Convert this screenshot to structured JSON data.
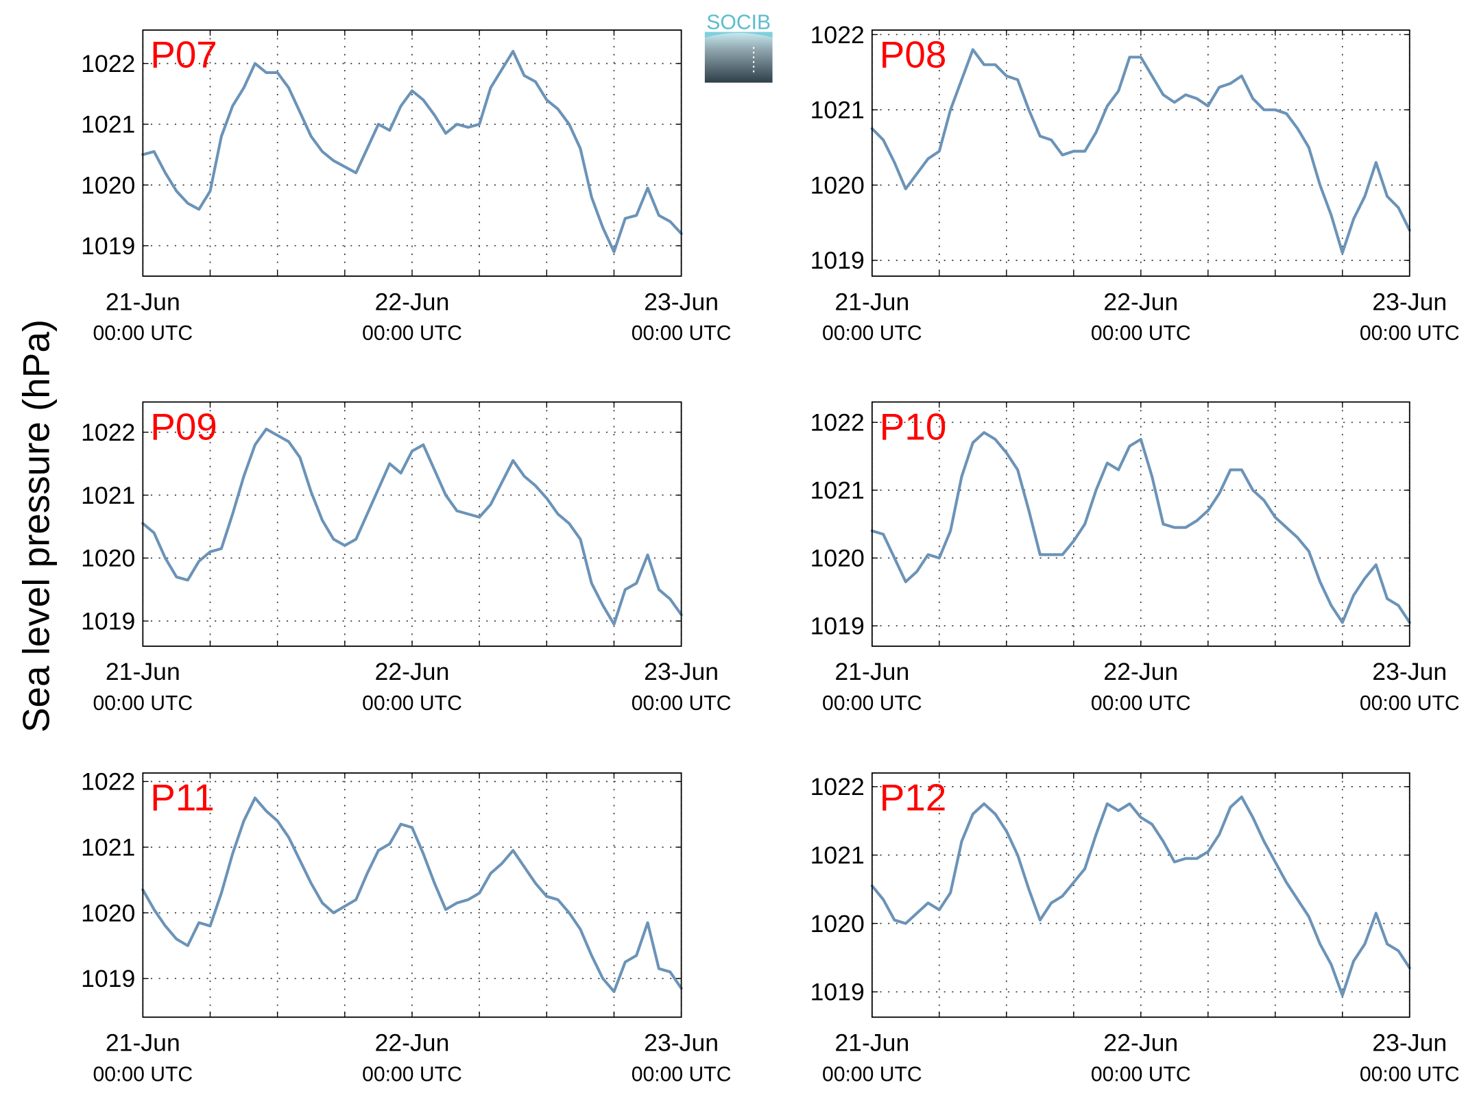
{
  "y_label": "Sea level pressure (hPa)",
  "logo": "SOCIB",
  "chart_data": [
    {
      "type": "line",
      "title": "P07",
      "x": [
        0,
        1,
        2,
        3,
        4,
        5,
        6,
        7,
        8,
        9,
        10,
        11,
        12,
        13,
        14,
        15,
        16,
        17,
        18,
        19,
        20,
        21,
        22,
        23,
        24,
        25,
        26,
        27,
        28,
        29,
        30,
        31,
        32,
        33,
        34,
        35,
        36,
        37,
        38,
        39,
        40,
        41,
        42,
        43,
        44,
        45,
        46,
        47,
        48
      ],
      "series": [
        {
          "color": "#6b93b8",
          "values": [
            1020.5,
            1020.55,
            1020.2,
            1019.9,
            1019.7,
            1019.6,
            1019.9,
            1020.8,
            1021.3,
            1021.6,
            1022.0,
            1021.85,
            1021.85,
            1021.6,
            1021.2,
            1020.8,
            1020.55,
            1020.4,
            1020.3,
            1020.2,
            1020.6,
            1021.0,
            1020.9,
            1021.3,
            1021.55,
            1021.4,
            1021.15,
            1020.85,
            1021.0,
            1020.95,
            1021.0,
            1021.6,
            1021.9,
            1022.2,
            1021.8,
            1021.7,
            1021.4,
            1021.25,
            1021.0,
            1020.6,
            1019.8,
            1019.3,
            1018.9,
            1019.45,
            1019.5,
            1019.95,
            1019.5,
            1019.4,
            1019.2
          ]
        }
      ],
      "xlim": [
        0,
        48
      ],
      "ylim": [
        1018.5,
        1022.55
      ],
      "yticks": [
        1019,
        1020,
        1021,
        1022
      ],
      "xticks": [
        {
          "value": 0,
          "label": "21-Jun",
          "sublabel": "00:00 UTC"
        },
        {
          "value": 6
        },
        {
          "value": 12
        },
        {
          "value": 18
        },
        {
          "value": 24,
          "label": "22-Jun",
          "sublabel": "00:00 UTC"
        },
        {
          "value": 30
        },
        {
          "value": 36
        },
        {
          "value": 42
        },
        {
          "value": 48,
          "label": "23-Jun",
          "sublabel": "00:00 UTC"
        }
      ],
      "grid": true
    },
    {
      "type": "line",
      "title": "P08",
      "x": [
        0,
        1,
        2,
        3,
        4,
        5,
        6,
        7,
        8,
        9,
        10,
        11,
        12,
        13,
        14,
        15,
        16,
        17,
        18,
        19,
        20,
        21,
        22,
        23,
        24,
        25,
        26,
        27,
        28,
        29,
        30,
        31,
        32,
        33,
        34,
        35,
        36,
        37,
        38,
        39,
        40,
        41,
        42,
        43,
        44,
        45,
        46,
        47,
        48
      ],
      "series": [
        {
          "color": "#6b93b8",
          "values": [
            1020.75,
            1020.6,
            1020.3,
            1019.95,
            1020.15,
            1020.35,
            1020.45,
            1021.0,
            1021.4,
            1021.8,
            1021.6,
            1021.6,
            1021.45,
            1021.4,
            1021.0,
            1020.65,
            1020.6,
            1020.4,
            1020.45,
            1020.45,
            1020.7,
            1021.05,
            1021.25,
            1021.7,
            1021.7,
            1021.45,
            1021.2,
            1021.1,
            1021.2,
            1021.15,
            1021.05,
            1021.3,
            1021.35,
            1021.45,
            1021.15,
            1021.0,
            1021.0,
            1020.95,
            1020.75,
            1020.5,
            1020.0,
            1019.6,
            1019.1,
            1019.55,
            1019.85,
            1020.3,
            1019.85,
            1019.7,
            1019.4
          ]
        }
      ],
      "xlim": [
        0,
        48
      ],
      "ylim": [
        1018.79,
        1022.06
      ],
      "yticks": [
        1019,
        1020,
        1021,
        1022
      ],
      "xticks": [
        {
          "value": 0,
          "label": "21-Jun",
          "sublabel": "00:00 UTC"
        },
        {
          "value": 6
        },
        {
          "value": 12
        },
        {
          "value": 18
        },
        {
          "value": 24,
          "label": "22-Jun",
          "sublabel": "00:00 UTC"
        },
        {
          "value": 30
        },
        {
          "value": 36
        },
        {
          "value": 42
        },
        {
          "value": 48,
          "label": "23-Jun",
          "sublabel": "00:00 UTC"
        }
      ],
      "grid": true
    },
    {
      "type": "line",
      "title": "P09",
      "x": [
        0,
        1,
        2,
        3,
        4,
        5,
        6,
        7,
        8,
        9,
        10,
        11,
        12,
        13,
        14,
        15,
        16,
        17,
        18,
        19,
        20,
        21,
        22,
        23,
        24,
        25,
        26,
        27,
        28,
        29,
        30,
        31,
        32,
        33,
        34,
        35,
        36,
        37,
        38,
        39,
        40,
        41,
        42,
        43,
        44,
        45,
        46,
        47,
        48
      ],
      "series": [
        {
          "color": "#6b93b8",
          "values": [
            1020.55,
            1020.4,
            1020.0,
            1019.7,
            1019.65,
            1019.95,
            1020.1,
            1020.15,
            1020.7,
            1021.3,
            1021.8,
            1022.05,
            1021.95,
            1021.85,
            1021.6,
            1021.05,
            1020.6,
            1020.3,
            1020.2,
            1020.3,
            1020.7,
            1021.1,
            1021.5,
            1021.35,
            1021.7,
            1021.8,
            1021.4,
            1021.0,
            1020.75,
            1020.7,
            1020.65,
            1020.85,
            1021.2,
            1021.55,
            1021.3,
            1021.15,
            1020.95,
            1020.7,
            1020.55,
            1020.3,
            1019.6,
            1019.25,
            1018.95,
            1019.5,
            1019.6,
            1020.05,
            1019.5,
            1019.35,
            1019.1
          ]
        }
      ],
      "xlim": [
        0,
        48
      ],
      "ylim": [
        1018.6,
        1022.48
      ],
      "yticks": [
        1019,
        1020,
        1021,
        1022
      ],
      "xticks": [
        {
          "value": 0,
          "label": "21-Jun",
          "sublabel": "00:00 UTC"
        },
        {
          "value": 6
        },
        {
          "value": 12
        },
        {
          "value": 18
        },
        {
          "value": 24,
          "label": "22-Jun",
          "sublabel": "00:00 UTC"
        },
        {
          "value": 30
        },
        {
          "value": 36
        },
        {
          "value": 42
        },
        {
          "value": 48,
          "label": "23-Jun",
          "sublabel": "00:00 UTC"
        }
      ],
      "grid": true
    },
    {
      "type": "line",
      "title": "P10",
      "x": [
        0,
        1,
        2,
        3,
        4,
        5,
        6,
        7,
        8,
        9,
        10,
        11,
        12,
        13,
        14,
        15,
        16,
        17,
        18,
        19,
        20,
        21,
        22,
        23,
        24,
        25,
        26,
        27,
        28,
        29,
        30,
        31,
        32,
        33,
        34,
        35,
        36,
        37,
        38,
        39,
        40,
        41,
        42,
        43,
        44,
        45,
        46,
        47,
        48
      ],
      "series": [
        {
          "color": "#6b93b8",
          "values": [
            1020.4,
            1020.35,
            1020.0,
            1019.65,
            1019.8,
            1020.05,
            1020.0,
            1020.4,
            1021.2,
            1021.7,
            1021.85,
            1021.75,
            1021.55,
            1021.3,
            1020.7,
            1020.05,
            1020.05,
            1020.05,
            1020.25,
            1020.5,
            1021.0,
            1021.4,
            1021.3,
            1021.65,
            1021.75,
            1021.2,
            1020.5,
            1020.45,
            1020.45,
            1020.55,
            1020.7,
            1020.95,
            1021.3,
            1021.3,
            1021.0,
            1020.85,
            1020.6,
            1020.45,
            1020.3,
            1020.1,
            1019.65,
            1019.3,
            1019.05,
            1019.45,
            1019.7,
            1019.9,
            1019.4,
            1019.3,
            1019.05
          ]
        }
      ],
      "xlim": [
        0,
        48
      ],
      "ylim": [
        1018.7,
        1022.3
      ],
      "yticks": [
        1019,
        1020,
        1021,
        1022
      ],
      "xticks": [
        {
          "value": 0,
          "label": "21-Jun",
          "sublabel": "00:00 UTC"
        },
        {
          "value": 6
        },
        {
          "value": 12
        },
        {
          "value": 18
        },
        {
          "value": 24,
          "label": "22-Jun",
          "sublabel": "00:00 UTC"
        },
        {
          "value": 30
        },
        {
          "value": 36
        },
        {
          "value": 42
        },
        {
          "value": 48,
          "label": "23-Jun",
          "sublabel": "00:00 UTC"
        }
      ],
      "grid": true
    },
    {
      "type": "line",
      "title": "P11",
      "x": [
        0,
        1,
        2,
        3,
        4,
        5,
        6,
        7,
        8,
        9,
        10,
        11,
        12,
        13,
        14,
        15,
        16,
        17,
        18,
        19,
        20,
        21,
        22,
        23,
        24,
        25,
        26,
        27,
        28,
        29,
        30,
        31,
        32,
        33,
        34,
        35,
        36,
        37,
        38,
        39,
        40,
        41,
        42,
        43,
        44,
        45,
        46,
        47,
        48
      ],
      "series": [
        {
          "color": "#6b93b8",
          "values": [
            1020.35,
            1020.05,
            1019.8,
            1019.6,
            1019.5,
            1019.85,
            1019.8,
            1020.3,
            1020.9,
            1021.4,
            1021.75,
            1021.55,
            1021.4,
            1021.15,
            1020.8,
            1020.45,
            1020.15,
            1020.0,
            1020.1,
            1020.2,
            1020.6,
            1020.95,
            1021.05,
            1021.35,
            1021.3,
            1020.9,
            1020.45,
            1020.05,
            1020.15,
            1020.2,
            1020.3,
            1020.6,
            1020.75,
            1020.95,
            1020.7,
            1020.45,
            1020.25,
            1020.2,
            1020.0,
            1019.75,
            1019.35,
            1019.0,
            1018.8,
            1019.25,
            1019.35,
            1019.85,
            1019.15,
            1019.1,
            1018.85
          ]
        }
      ],
      "xlim": [
        0,
        48
      ],
      "ylim": [
        1018.41,
        1022.13
      ],
      "yticks": [
        1019,
        1020,
        1021,
        1022
      ],
      "xticks": [
        {
          "value": 0,
          "label": "21-Jun",
          "sublabel": "00:00 UTC"
        },
        {
          "value": 6
        },
        {
          "value": 12
        },
        {
          "value": 18
        },
        {
          "value": 24,
          "label": "22-Jun",
          "sublabel": "00:00 UTC"
        },
        {
          "value": 30
        },
        {
          "value": 36
        },
        {
          "value": 42
        },
        {
          "value": 48,
          "label": "23-Jun",
          "sublabel": "00:00 UTC"
        }
      ],
      "grid": true
    },
    {
      "type": "line",
      "title": "P12",
      "x": [
        0,
        1,
        2,
        3,
        4,
        5,
        6,
        7,
        8,
        9,
        10,
        11,
        12,
        13,
        14,
        15,
        16,
        17,
        18,
        19,
        20,
        21,
        22,
        23,
        24,
        25,
        26,
        27,
        28,
        29,
        30,
        31,
        32,
        33,
        34,
        35,
        36,
        37,
        38,
        39,
        40,
        41,
        42,
        43,
        44,
        45,
        46,
        47,
        48
      ],
      "series": [
        {
          "color": "#6b93b8",
          "values": [
            1020.55,
            1020.35,
            1020.05,
            1020.0,
            1020.15,
            1020.3,
            1020.2,
            1020.45,
            1021.2,
            1021.6,
            1021.75,
            1021.6,
            1021.35,
            1021.0,
            1020.5,
            1020.05,
            1020.3,
            1020.4,
            1020.6,
            1020.8,
            1021.3,
            1021.75,
            1021.65,
            1021.75,
            1021.55,
            1021.45,
            1021.2,
            1020.9,
            1020.95,
            1020.95,
            1021.05,
            1021.3,
            1021.7,
            1021.85,
            1021.55,
            1021.2,
            1020.9,
            1020.6,
            1020.35,
            1020.1,
            1019.7,
            1019.4,
            1018.95,
            1019.45,
            1019.7,
            1020.15,
            1019.7,
            1019.6,
            1019.35
          ]
        }
      ],
      "xlim": [
        0,
        48
      ],
      "ylim": [
        1018.63,
        1022.2
      ],
      "yticks": [
        1019,
        1020,
        1021,
        1022
      ],
      "xticks": [
        {
          "value": 0,
          "label": "21-Jun",
          "sublabel": "00:00 UTC"
        },
        {
          "value": 6
        },
        {
          "value": 12
        },
        {
          "value": 18
        },
        {
          "value": 24,
          "label": "22-Jun",
          "sublabel": "00:00 UTC"
        },
        {
          "value": 30
        },
        {
          "value": 36
        },
        {
          "value": 42
        },
        {
          "value": 48,
          "label": "23-Jun",
          "sublabel": "00:00 UTC"
        }
      ],
      "grid": true
    }
  ]
}
